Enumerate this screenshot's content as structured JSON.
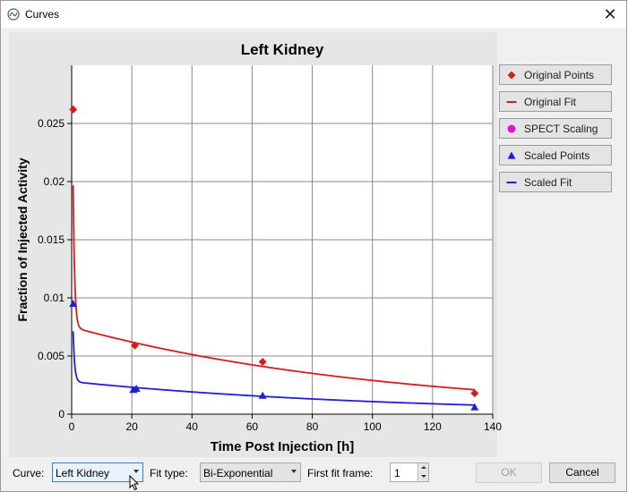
{
  "window": {
    "title": "Curves",
    "close_glyph": "✕",
    "icon": "curves-app-icon"
  },
  "legend": [
    {
      "label": "Original Points",
      "symbol": "diamond",
      "color": "#d81b1b"
    },
    {
      "label": "Original Fit",
      "symbol": "line",
      "color": "#d81b1b"
    },
    {
      "label": "SPECT Scaling",
      "symbol": "circle",
      "color": "#e60fd2"
    },
    {
      "label": "Scaled Points",
      "symbol": "triangle",
      "color": "#1f1fd6"
    },
    {
      "label": "Scaled Fit",
      "symbol": "line",
      "color": "#1f1fd6"
    }
  ],
  "controls": {
    "curve_label": "Curve:",
    "curve_value": "Left Kidney",
    "fit_type_label": "Fit type:",
    "fit_type_value": "Bi-Exponential",
    "first_fit_frame_label": "First fit frame:",
    "first_fit_frame_value": "1",
    "ok_label": "OK",
    "cancel_label": "Cancel"
  },
  "chart_data": {
    "type": "line",
    "title": "Left Kidney",
    "xlabel": "Time Post Injection [h]",
    "ylabel": "Fraction of Injected Activity",
    "xlim": [
      0,
      140
    ],
    "ylim": [
      0,
      0.03
    ],
    "xticks": [
      0,
      20,
      40,
      60,
      80,
      100,
      120,
      140
    ],
    "yticks": [
      0,
      0.005,
      0.01,
      0.015,
      0.02,
      0.025
    ],
    "ytick_labels": [
      "0",
      "0.005",
      "0.01",
      "0.015",
      "0.02",
      "0.025"
    ],
    "grid": true,
    "legend_position": "right",
    "series": [
      {
        "name": "Original Points",
        "kind": "points",
        "marker": "diamond",
        "color": "#d81b1b",
        "x": [
          0.5,
          21,
          63.5,
          134
        ],
        "y": [
          0.0262,
          0.0059,
          0.0045,
          0.0018
        ]
      },
      {
        "name": "Original Fit",
        "kind": "fit",
        "color": "#d81b1b",
        "model": {
          "a1": 0.0332,
          "k1": 2.0,
          "a2": 0.0075,
          "k2": 0.0095
        },
        "x_range": [
          0.5,
          134
        ]
      },
      {
        "name": "Scaled Points",
        "kind": "points",
        "marker": "triangle",
        "color": "#1f1fd6",
        "x": [
          0.5,
          20.5,
          21.5,
          63.5,
          134
        ],
        "y": [
          0.0095,
          0.0021,
          0.0022,
          0.0016,
          0.0006
        ]
      },
      {
        "name": "Scaled Fit",
        "kind": "fit",
        "color": "#1f1fd6",
        "model": {
          "a1": 0.0118,
          "k1": 2.0,
          "a2": 0.0028,
          "k2": 0.0095
        },
        "x_range": [
          0.5,
          134
        ]
      }
    ]
  }
}
